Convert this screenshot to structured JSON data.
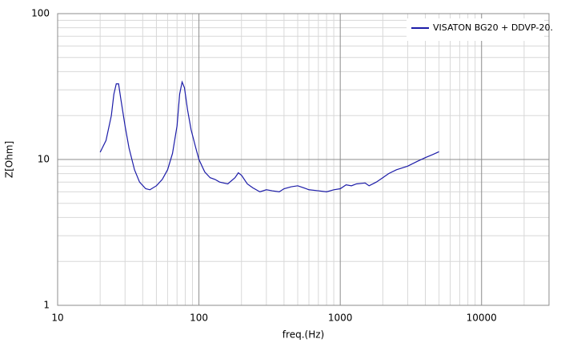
{
  "chart_data": {
    "type": "line",
    "x_label": "freq.(Hz)",
    "y_label": "Z[Ohm]",
    "x_log": true,
    "y_log": true,
    "grid": true,
    "legend": "upper right",
    "xlim": [
      10,
      30000
    ],
    "ylim": [
      1,
      100
    ],
    "xticks": [
      10,
      100,
      1000,
      10000
    ],
    "yticks": [
      1,
      10,
      100
    ],
    "x": [
      20,
      22,
      24,
      25,
      26,
      27,
      28,
      30,
      32,
      35,
      38,
      42,
      45,
      50,
      55,
      60,
      65,
      70,
      73,
      76,
      79,
      83,
      88,
      95,
      100,
      110,
      120,
      130,
      140,
      160,
      180,
      190,
      200,
      220,
      240,
      270,
      300,
      330,
      370,
      400,
      450,
      500,
      550,
      600,
      700,
      800,
      900,
      1000,
      1100,
      1200,
      1300,
      1500,
      1600,
      1800,
      2000,
      2200,
      2500,
      3000,
      3500,
      4000,
      4500,
      5000
    ],
    "series": [
      {
        "name": "VISATON BG20 + DDVP-20.",
        "color": "#1c1ca8",
        "values": [
          11.2,
          13.5,
          20,
          28,
          33,
          33,
          26,
          17,
          12,
          8.5,
          7,
          6.3,
          6.2,
          6.6,
          7.3,
          8.5,
          11,
          17,
          28,
          34,
          31,
          22,
          16,
          12,
          10,
          8.2,
          7.5,
          7.3,
          7,
          6.8,
          7.5,
          8.1,
          7.8,
          6.8,
          6.4,
          6.0,
          6.2,
          6.1,
          6.0,
          6.3,
          6.5,
          6.6,
          6.4,
          6.2,
          6.1,
          6.0,
          6.2,
          6.3,
          6.7,
          6.6,
          6.8,
          6.9,
          6.6,
          7.0,
          7.5,
          8.0,
          8.5,
          9.0,
          9.7,
          10.3,
          10.8,
          11.3
        ]
      }
    ]
  }
}
